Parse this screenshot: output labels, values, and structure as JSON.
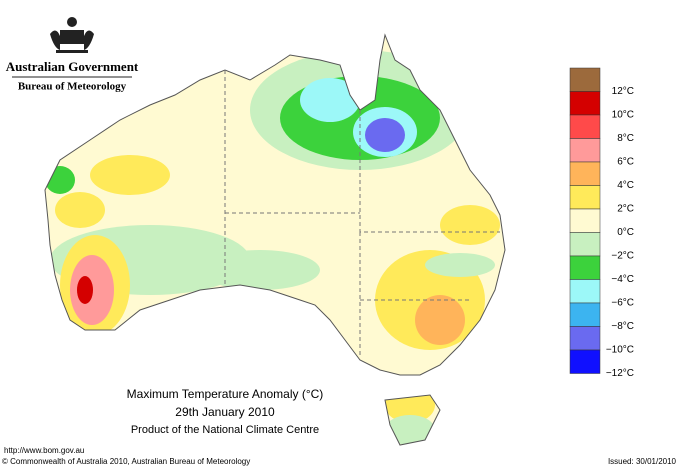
{
  "header": {
    "government": "Australian Government",
    "bureau": "Bureau of Meteorology"
  },
  "title": {
    "line1": "Maximum Temperature Anomaly (°C)",
    "line2": "29th January 2010",
    "line3": "Product of the National Climate Centre"
  },
  "legend": {
    "colors": [
      "#9c6a3c",
      "#d40000",
      "#ff4a4a",
      "#ff9a9a",
      "#ffb45a",
      "#ffea5a",
      "#fffad2",
      "#c8f0c0",
      "#3cd23c",
      "#9cf8f8",
      "#3cb4f0",
      "#6a6af0",
      "#1010ff"
    ],
    "labels": [
      "12°C",
      "10°C",
      "8°C",
      "6°C",
      "4°C",
      "2°C",
      "0°C",
      "−2°C",
      "−4°C",
      "−6°C",
      "−8°C",
      "−10°C",
      "−12°C"
    ]
  },
  "footer": {
    "url": "http://www.bom.gov.au",
    "copyright": "© Commonwealth of Australia 2010, Australian Bureau of Meteorology",
    "issued": "Issued: 30/01/2010"
  }
}
